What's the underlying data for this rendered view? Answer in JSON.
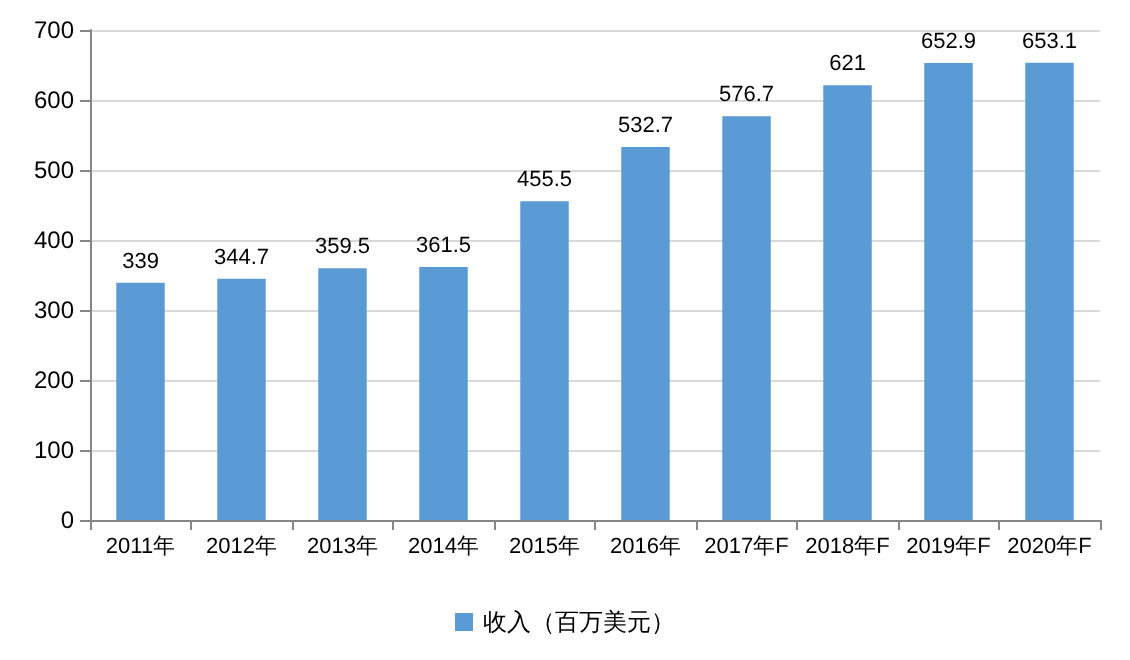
{
  "chart_data": {
    "type": "bar",
    "categories": [
      "2011年",
      "2012年",
      "2013年",
      "2014年",
      "2015年",
      "2016年",
      "2017年F",
      "2018年F",
      "2019年F",
      "2020年F"
    ],
    "series": [
      {
        "name": "收入（百万美元）",
        "color": "#5b9bd5",
        "values": [
          339,
          344.7,
          359.5,
          361.5,
          455.5,
          532.7,
          576.7,
          621,
          652.9,
          653.1
        ]
      }
    ],
    "ylim": [
      0,
      700
    ],
    "yticks": [
      0,
      100,
      200,
      300,
      400,
      500,
      600,
      700
    ],
    "grid": "y",
    "legend": "bottom",
    "data_labels": true
  }
}
